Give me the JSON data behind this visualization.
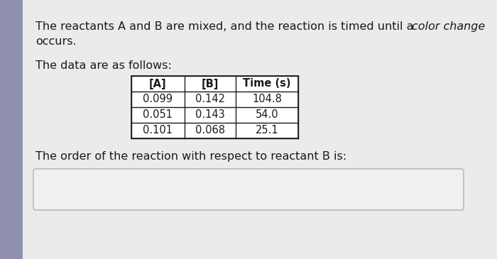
{
  "bg_color": "#d8d8dc",
  "panel_color": "#ebebeb",
  "text_color": "#1a1a1a",
  "line1_normal": "The reactants A and B are mixed, and the reaction is timed until a ",
  "line1_italic": "color change",
  "line2": "occurs.",
  "line3": "The data are as follows:",
  "table_headers": [
    "[A]",
    "[B]",
    "Time (s)"
  ],
  "table_rows": [
    [
      "0.099",
      "0.142",
      "104.8"
    ],
    [
      "0.051",
      "0.143",
      "54.0"
    ],
    [
      "0.101",
      "0.068",
      "25.1"
    ]
  ],
  "footer_text": "The order of the reaction with respect to reactant B is:",
  "answer_box_color": "#f0f0f0",
  "left_strip_color": "#9090b0"
}
